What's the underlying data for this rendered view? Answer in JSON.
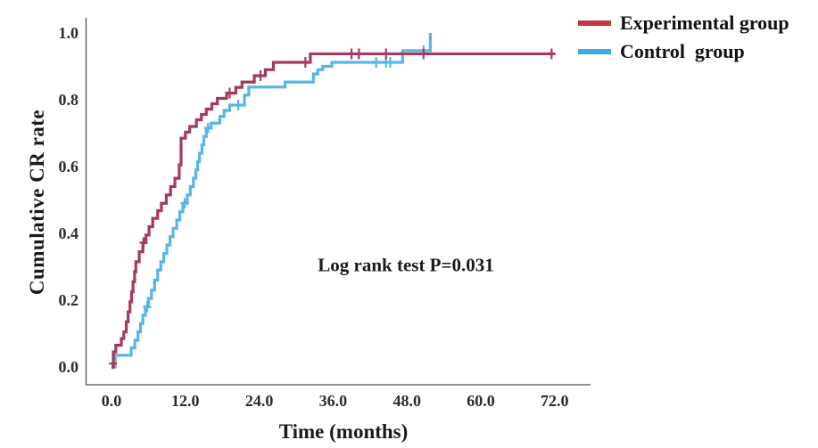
{
  "chart_data": {
    "type": "line",
    "subtype": "kaplan_meier_step_cumulative",
    "title": "",
    "xlabel": "Time (months)",
    "ylabel": "Cumulative CR rate",
    "xlim": [
      0,
      72
    ],
    "ylim": [
      0.0,
      1.0
    ],
    "grid": false,
    "legend_position": "top-right",
    "x_ticks": [
      {
        "value": 0,
        "label": "0.0"
      },
      {
        "value": 12,
        "label": "12.0"
      },
      {
        "value": 24,
        "label": "24.0"
      },
      {
        "value": 36,
        "label": "36.0"
      },
      {
        "value": 48,
        "label": "48.0"
      },
      {
        "value": 60,
        "label": "60.0"
      },
      {
        "value": 72,
        "label": "72.0"
      }
    ],
    "y_ticks": [
      {
        "value": 0.0,
        "label": "0.0"
      },
      {
        "value": 0.2,
        "label": "0.2"
      },
      {
        "value": 0.4,
        "label": "0.4"
      },
      {
        "value": 0.6,
        "label": "0.6"
      },
      {
        "value": 0.8,
        "label": "0.8"
      },
      {
        "value": 1.0,
        "label": "1.0"
      }
    ],
    "annotation": {
      "text": "Log rank test P=0.031",
      "x_months": 48,
      "y_value": 0.3
    },
    "legend": [
      {
        "label": "Experimental group",
        "color": "#C0373F"
      },
      {
        "label": "Control  group",
        "color": "#36ADE4"
      }
    ],
    "series": [
      {
        "name": "Experimental group",
        "color": "#A63A5C",
        "start": [
          0,
          0
        ],
        "end_time": 72,
        "steps": [
          [
            0.3,
            0.045
          ],
          [
            0.7,
            0.065
          ],
          [
            1.6,
            0.085
          ],
          [
            2.0,
            0.105
          ],
          [
            2.4,
            0.135
          ],
          [
            2.7,
            0.165
          ],
          [
            3.0,
            0.195
          ],
          [
            3.25,
            0.225
          ],
          [
            3.5,
            0.255
          ],
          [
            3.75,
            0.285
          ],
          [
            3.95,
            0.315
          ],
          [
            4.5,
            0.345
          ],
          [
            5.1,
            0.372
          ],
          [
            5.6,
            0.395
          ],
          [
            6.1,
            0.42
          ],
          [
            6.7,
            0.445
          ],
          [
            7.5,
            0.468
          ],
          [
            8.1,
            0.49
          ],
          [
            8.9,
            0.515
          ],
          [
            9.6,
            0.54
          ],
          [
            10.3,
            0.565
          ],
          [
            11.0,
            0.605
          ],
          [
            11.3,
            0.685
          ],
          [
            12.0,
            0.703
          ],
          [
            12.7,
            0.72
          ],
          [
            13.8,
            0.74
          ],
          [
            14.6,
            0.756
          ],
          [
            15.4,
            0.772
          ],
          [
            16.3,
            0.788
          ],
          [
            17.2,
            0.804
          ],
          [
            18.7,
            0.82
          ],
          [
            20.2,
            0.837
          ],
          [
            21.2,
            0.853
          ],
          [
            23.2,
            0.872
          ],
          [
            25.0,
            0.89
          ],
          [
            26.3,
            0.912
          ],
          [
            32.3,
            0.9375
          ]
        ],
        "censors": [
          [
            0.25,
            0.01
          ],
          [
            5.2,
            0.372
          ],
          [
            19.2,
            0.82
          ],
          [
            24.2,
            0.872
          ],
          [
            31.5,
            0.912
          ],
          [
            39.0,
            0.9375
          ],
          [
            40.2,
            0.9375
          ],
          [
            44.6,
            0.9375
          ],
          [
            50.7,
            0.9375
          ],
          [
            71.5,
            0.9375
          ]
        ]
      },
      {
        "name": "Control group",
        "color": "#58B5E8",
        "start": [
          0.5,
          0
        ],
        "end_time": 51.8,
        "steps": [
          [
            0.6,
            0.035
          ],
          [
            3.2,
            0.057
          ],
          [
            3.8,
            0.08
          ],
          [
            4.3,
            0.105
          ],
          [
            4.7,
            0.13
          ],
          [
            5.1,
            0.155
          ],
          [
            5.5,
            0.18
          ],
          [
            6.0,
            0.205
          ],
          [
            6.5,
            0.23
          ],
          [
            7.0,
            0.26
          ],
          [
            7.5,
            0.29
          ],
          [
            8.0,
            0.315
          ],
          [
            8.5,
            0.34
          ],
          [
            9.0,
            0.365
          ],
          [
            9.5,
            0.39
          ],
          [
            10.0,
            0.415
          ],
          [
            10.6,
            0.44
          ],
          [
            11.1,
            0.465
          ],
          [
            11.6,
            0.49
          ],
          [
            12.3,
            0.515
          ],
          [
            12.8,
            0.54
          ],
          [
            13.3,
            0.565
          ],
          [
            13.7,
            0.59
          ],
          [
            14.0,
            0.615
          ],
          [
            14.3,
            0.64
          ],
          [
            14.7,
            0.665
          ],
          [
            15.0,
            0.69
          ],
          [
            15.4,
            0.715
          ],
          [
            16.2,
            0.73
          ],
          [
            17.6,
            0.75
          ],
          [
            18.3,
            0.768
          ],
          [
            19.2,
            0.784
          ],
          [
            21.6,
            0.814
          ],
          [
            22.3,
            0.838
          ],
          [
            28.2,
            0.853
          ],
          [
            32.8,
            0.877
          ],
          [
            33.5,
            0.89
          ],
          [
            34.3,
            0.9
          ],
          [
            35.8,
            0.912
          ],
          [
            47.3,
            0.947
          ],
          [
            51.8,
            1.0
          ]
        ],
        "censors": [
          [
            5.8,
            0.18
          ],
          [
            11.9,
            0.49
          ],
          [
            15.7,
            0.715
          ],
          [
            20.6,
            0.784
          ],
          [
            43.0,
            0.912
          ],
          [
            44.6,
            0.912
          ],
          [
            45.3,
            0.912
          ],
          [
            50.7,
            0.947
          ]
        ]
      }
    ]
  },
  "colors": {
    "axis": "#555555",
    "text": "#1a1a1a",
    "background": "#ffffff"
  }
}
